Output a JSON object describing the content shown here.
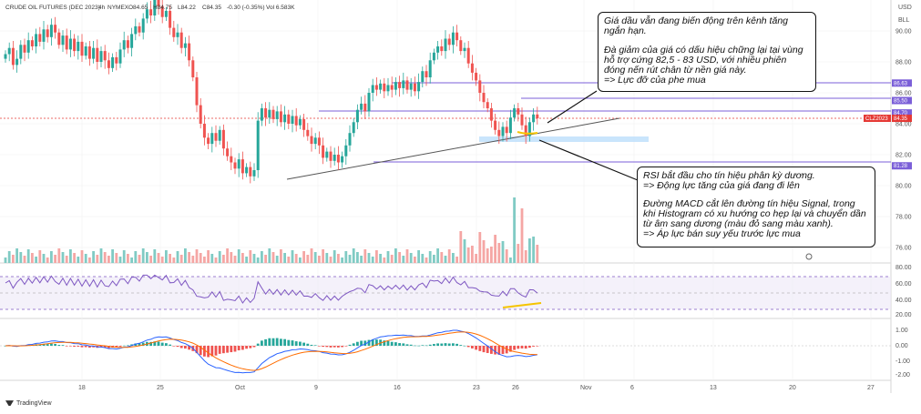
{
  "header": {
    "symbol": "CRUDE OIL FUTURES (DEC 2023)",
    "interval": "4h",
    "exchange": "NYMEX",
    "open": "O84.65",
    "high": "H84.75",
    "low": "L84.22",
    "close": "C84.35",
    "change": "-0.30 (-0.35%)",
    "volume": "Vol 6.583K"
  },
  "axis_top": {
    "currency": "USD",
    "mode": "BLL"
  },
  "price_axis": {
    "ticks": [
      "90.00",
      "88.00",
      "86.00",
      "84.00",
      "82.00",
      "80.00",
      "78.00",
      "76.00"
    ]
  },
  "price_tags": [
    {
      "label": "86.63",
      "value": 86.63,
      "color": "#7b5fd8"
    },
    {
      "label": "85.50",
      "value": 85.5,
      "color": "#7b5fd8"
    },
    {
      "label": "84.70",
      "value": 84.7,
      "color": "#7b5fd8"
    },
    {
      "label": "84.35",
      "value": 84.35,
      "color": "#e53935"
    },
    {
      "label": "81.28",
      "value": 81.28,
      "color": "#7b5fd8"
    }
  ],
  "symbol_tag": "CLZ2023",
  "rsi_axis": {
    "ticks": [
      "80.00",
      "60.00",
      "40.00",
      "20.00"
    ]
  },
  "macd_axis": {
    "ticks": [
      "1.00",
      "0.00",
      "-1.00",
      "-2.00"
    ]
  },
  "time_axis": {
    "ticks": [
      "18",
      "25",
      "Oct",
      "9",
      "16",
      "23",
      "26",
      "Nov",
      "6",
      "13",
      "20",
      "27"
    ]
  },
  "annotations": {
    "top_note": {
      "line1": "Giá dầu vẫn đang biến động trên kênh tăng ngắn hạn.",
      "line2": "Đà giảm của giá có dấu hiệu chững lại tại vùng hỗ trợ cứng 82,5 - 83 USD, với nhiều phiên đóng nến rút chân từ nền giá này.",
      "line3": "=> Lực đỡ của phe mua"
    },
    "bottom_note": {
      "line1": "RSI bắt đầu cho tín hiệu phân kỳ dương.",
      "line2": "=> Động lực tăng của giá đang đi lên",
      "line3": "Đường MACD cắt lên đường tín hiệu Signal, trong khi Histogram có xu hướng co hẹp lại và chuyển dần từ âm sang dương (màu đỏ sang màu xanh).",
      "line4": "=> Áp lực bán suy yếu trước lực mua"
    }
  },
  "branding": "TradingView",
  "colors": {
    "up": "#26a69a",
    "down": "#ef5350",
    "rsi": "#7e57c2",
    "macd": "#2962ff",
    "signal": "#ff6d00",
    "level": "#7b5fd8",
    "support_zone": "#bbdefb"
  },
  "chart_data": {
    "type": "candlestick",
    "y_range": [
      75.0,
      92.0
    ],
    "close_series": [
      88.5,
      88.9,
      87.8,
      88.2,
      89.1,
      88.6,
      89.4,
      89.0,
      89.8,
      89.3,
      90.1,
      89.6,
      90.4,
      89.9,
      89.1,
      89.7,
      88.8,
      89.5,
      88.7,
      89.3,
      88.4,
      89.0,
      88.2,
      88.9,
      88.0,
      88.7,
      88.1,
      87.6,
      88.3,
      87.9,
      88.8,
      89.4,
      88.9,
      89.8,
      90.3,
      89.9,
      90.8,
      91.4,
      91.0,
      92.0,
      91.6,
      90.9,
      91.3,
      90.2,
      89.6,
      89.9,
      88.9,
      89.2,
      88.1,
      87.0,
      85.2,
      84.0,
      83.1,
      82.7,
      83.4,
      82.9,
      83.6,
      82.4,
      81.9,
      81.5,
      81.1,
      81.7,
      80.8,
      81.2,
      80.6,
      81.0,
      84.2,
      85.0,
      84.4,
      84.9,
      84.3,
      84.8,
      84.1,
      84.6,
      84.0,
      84.5,
      83.9,
      84.3,
      83.6,
      83.2,
      82.7,
      83.1,
      82.6,
      81.8,
      82.2,
      81.6,
      82.0,
      81.5,
      81.9,
      82.6,
      83.4,
      84.1,
      84.9,
      85.3,
      84.8,
      86.0,
      86.5,
      86.2,
      86.6,
      86.1,
      86.5,
      86.2,
      86.7,
      86.3,
      86.8,
      86.2,
      86.6,
      86.1,
      86.7,
      87.4,
      87.0,
      88.1,
      88.6,
      89.0,
      88.7,
      89.5,
      89.1,
      89.9,
      89.4,
      88.7,
      88.9,
      87.9,
      87.3,
      86.8,
      86.0,
      85.4,
      85.0,
      84.2,
      83.6,
      83.2,
      83.8,
      83.4,
      84.4,
      85.0,
      84.6,
      83.9,
      83.2,
      84.1,
      84.6,
      84.35
    ]
  }
}
